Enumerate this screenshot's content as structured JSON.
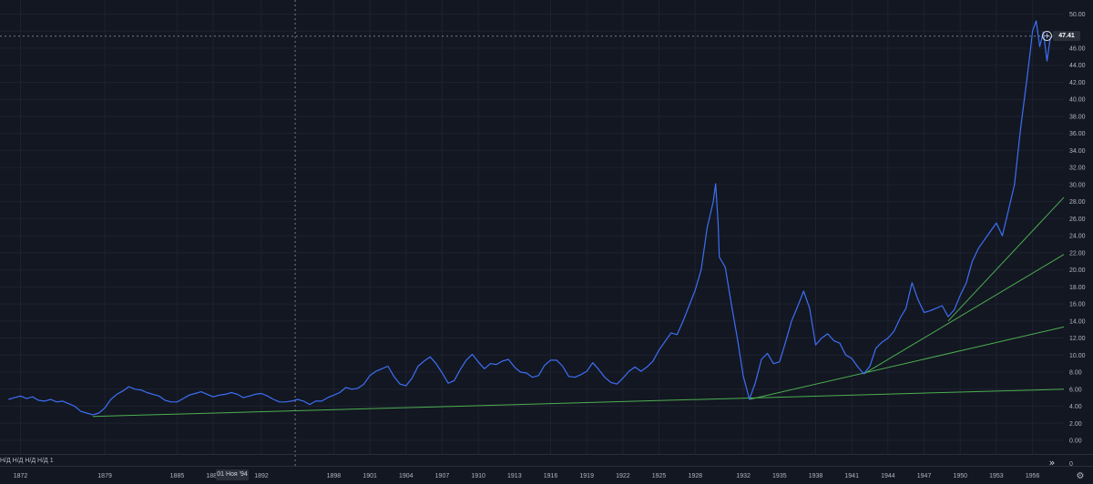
{
  "chart_data": {
    "type": "line",
    "title": "",
    "xlabel": "",
    "ylabel": "",
    "xlim": [
      1870.3,
      1958.6
    ],
    "ylim": [
      0,
      50
    ],
    "x_ticks": [
      "1872",
      "1879",
      "1885",
      "1888",
      "1892",
      "1898",
      "1901",
      "1904",
      "1907",
      "1910",
      "1913",
      "1916",
      "1919",
      "1922",
      "1925",
      "1928",
      "1932",
      "1935",
      "1938",
      "1941",
      "1944",
      "1947",
      "1950",
      "1953",
      "1956"
    ],
    "x_tick_values": [
      1872,
      1879,
      1885,
      1888,
      1892,
      1898,
      1901,
      1904,
      1907,
      1910,
      1913,
      1916,
      1919,
      1922,
      1925,
      1928,
      1932,
      1935,
      1938,
      1941,
      1944,
      1947,
      1950,
      1953,
      1956
    ],
    "y_ticks": [
      "0.00",
      "2.00",
      "4.00",
      "6.00",
      "8.00",
      "10.00",
      "12.00",
      "14.00",
      "16.00",
      "18.00",
      "20.00",
      "22.00",
      "24.00",
      "26.00",
      "28.00",
      "30.00",
      "32.00",
      "34.00",
      "36.00",
      "38.00",
      "40.00",
      "42.00",
      "44.00",
      "46.00",
      "48.00",
      "50.00"
    ],
    "y_tick_values": [
      0,
      2,
      4,
      6,
      8,
      10,
      12,
      14,
      16,
      18,
      20,
      22,
      24,
      26,
      28,
      30,
      32,
      34,
      36,
      38,
      40,
      42,
      44,
      46,
      48,
      50
    ],
    "grid": true,
    "series": [
      {
        "color": "#3d6ff5",
        "points": [
          [
            1871.0,
            4.8
          ],
          [
            1871.5,
            5.0
          ],
          [
            1872.0,
            5.2
          ],
          [
            1872.5,
            4.9
          ],
          [
            1873.0,
            5.1
          ],
          [
            1873.5,
            4.7
          ],
          [
            1874.0,
            4.6
          ],
          [
            1874.5,
            4.8
          ],
          [
            1875.0,
            4.5
          ],
          [
            1875.5,
            4.6
          ],
          [
            1876.0,
            4.3
          ],
          [
            1876.5,
            4.0
          ],
          [
            1877.0,
            3.4
          ],
          [
            1877.5,
            3.2
          ],
          [
            1878.0,
            3.0
          ],
          [
            1878.5,
            3.2
          ],
          [
            1879.0,
            3.8
          ],
          [
            1879.5,
            4.8
          ],
          [
            1880.0,
            5.4
          ],
          [
            1880.5,
            5.8
          ],
          [
            1881.0,
            6.3
          ],
          [
            1881.5,
            6.0
          ],
          [
            1882.0,
            5.9
          ],
          [
            1882.5,
            5.6
          ],
          [
            1883.0,
            5.4
          ],
          [
            1883.5,
            5.2
          ],
          [
            1884.0,
            4.7
          ],
          [
            1884.5,
            4.5
          ],
          [
            1885.0,
            4.5
          ],
          [
            1885.5,
            4.9
          ],
          [
            1886.0,
            5.3
          ],
          [
            1886.5,
            5.5
          ],
          [
            1887.0,
            5.7
          ],
          [
            1887.5,
            5.4
          ],
          [
            1888.0,
            5.1
          ],
          [
            1888.5,
            5.3
          ],
          [
            1889.0,
            5.4
          ],
          [
            1889.5,
            5.6
          ],
          [
            1890.0,
            5.4
          ],
          [
            1890.5,
            5.0
          ],
          [
            1891.0,
            5.2
          ],
          [
            1891.5,
            5.4
          ],
          [
            1892.0,
            5.5
          ],
          [
            1892.5,
            5.2
          ],
          [
            1893.0,
            4.8
          ],
          [
            1893.5,
            4.5
          ],
          [
            1894.0,
            4.5
          ],
          [
            1894.5,
            4.6
          ],
          [
            1895.0,
            4.8
          ],
          [
            1895.5,
            4.6
          ],
          [
            1896.0,
            4.2
          ],
          [
            1896.5,
            4.6
          ],
          [
            1897.0,
            4.6
          ],
          [
            1897.5,
            5.0
          ],
          [
            1898.0,
            5.3
          ],
          [
            1898.5,
            5.6
          ],
          [
            1899.0,
            6.2
          ],
          [
            1899.5,
            6.0
          ],
          [
            1900.0,
            6.1
          ],
          [
            1900.5,
            6.6
          ],
          [
            1901.0,
            7.6
          ],
          [
            1901.5,
            8.1
          ],
          [
            1902.0,
            8.4
          ],
          [
            1902.5,
            8.7
          ],
          [
            1903.0,
            7.5
          ],
          [
            1903.5,
            6.6
          ],
          [
            1904.0,
            6.4
          ],
          [
            1904.5,
            7.3
          ],
          [
            1905.0,
            8.7
          ],
          [
            1905.5,
            9.3
          ],
          [
            1906.0,
            9.8
          ],
          [
            1906.5,
            9.0
          ],
          [
            1907.0,
            7.9
          ],
          [
            1907.5,
            6.7
          ],
          [
            1908.0,
            7.0
          ],
          [
            1908.5,
            8.3
          ],
          [
            1909.0,
            9.4
          ],
          [
            1909.5,
            10.1
          ],
          [
            1910.0,
            9.2
          ],
          [
            1910.5,
            8.4
          ],
          [
            1911.0,
            9.0
          ],
          [
            1911.5,
            8.9
          ],
          [
            1912.0,
            9.3
          ],
          [
            1912.5,
            9.5
          ],
          [
            1913.0,
            8.6
          ],
          [
            1913.5,
            8.0
          ],
          [
            1914.0,
            7.9
          ],
          [
            1914.5,
            7.4
          ],
          [
            1915.0,
            7.6
          ],
          [
            1915.5,
            8.8
          ],
          [
            1916.0,
            9.4
          ],
          [
            1916.5,
            9.4
          ],
          [
            1917.0,
            8.7
          ],
          [
            1917.5,
            7.5
          ],
          [
            1918.0,
            7.4
          ],
          [
            1918.5,
            7.7
          ],
          [
            1919.0,
            8.1
          ],
          [
            1919.5,
            9.1
          ],
          [
            1920.0,
            8.3
          ],
          [
            1920.5,
            7.4
          ],
          [
            1921.0,
            6.8
          ],
          [
            1921.5,
            6.6
          ],
          [
            1922.0,
            7.3
          ],
          [
            1922.5,
            8.1
          ],
          [
            1923.0,
            8.6
          ],
          [
            1923.5,
            8.1
          ],
          [
            1924.0,
            8.6
          ],
          [
            1924.5,
            9.3
          ],
          [
            1925.0,
            10.6
          ],
          [
            1925.5,
            11.6
          ],
          [
            1926.0,
            12.6
          ],
          [
            1926.5,
            12.4
          ],
          [
            1927.0,
            14.0
          ],
          [
            1927.5,
            15.8
          ],
          [
            1928.0,
            17.6
          ],
          [
            1928.5,
            20.0
          ],
          [
            1929.0,
            25.0
          ],
          [
            1929.5,
            28.0
          ],
          [
            1929.7,
            30.1
          ],
          [
            1929.9,
            25.5
          ],
          [
            1930.0,
            21.5
          ],
          [
            1930.5,
            20.3
          ],
          [
            1931.0,
            16.0
          ],
          [
            1931.5,
            12.0
          ],
          [
            1932.0,
            7.5
          ],
          [
            1932.5,
            4.8
          ],
          [
            1933.0,
            6.8
          ],
          [
            1933.5,
            9.5
          ],
          [
            1934.0,
            10.2
          ],
          [
            1934.5,
            9.0
          ],
          [
            1935.0,
            9.2
          ],
          [
            1935.5,
            11.5
          ],
          [
            1936.0,
            14.0
          ],
          [
            1936.5,
            15.7
          ],
          [
            1937.0,
            17.5
          ],
          [
            1937.5,
            15.5
          ],
          [
            1938.0,
            11.2
          ],
          [
            1938.5,
            12.0
          ],
          [
            1939.0,
            12.5
          ],
          [
            1939.5,
            11.7
          ],
          [
            1940.0,
            11.4
          ],
          [
            1940.5,
            10.0
          ],
          [
            1941.0,
            9.6
          ],
          [
            1941.5,
            8.6
          ],
          [
            1942.0,
            7.8
          ],
          [
            1942.5,
            8.7
          ],
          [
            1943.0,
            10.8
          ],
          [
            1943.5,
            11.5
          ],
          [
            1944.0,
            12.0
          ],
          [
            1944.5,
            12.8
          ],
          [
            1945.0,
            14.3
          ],
          [
            1945.5,
            15.5
          ],
          [
            1946.0,
            18.5
          ],
          [
            1946.5,
            16.5
          ],
          [
            1947.0,
            15.0
          ],
          [
            1947.5,
            15.2
          ],
          [
            1948.0,
            15.5
          ],
          [
            1948.5,
            15.8
          ],
          [
            1949.0,
            14.5
          ],
          [
            1949.5,
            15.3
          ],
          [
            1950.0,
            17.0
          ],
          [
            1950.5,
            18.5
          ],
          [
            1951.0,
            21.0
          ],
          [
            1951.5,
            22.5
          ],
          [
            1952.0,
            23.5
          ],
          [
            1952.5,
            24.5
          ],
          [
            1953.0,
            25.5
          ],
          [
            1953.5,
            24.0
          ],
          [
            1954.0,
            27.0
          ],
          [
            1954.5,
            30.0
          ],
          [
            1955.0,
            36.5
          ],
          [
            1955.5,
            42.0
          ],
          [
            1955.8,
            45.5
          ],
          [
            1956.0,
            48.0
          ],
          [
            1956.3,
            49.2
          ],
          [
            1956.6,
            46.2
          ],
          [
            1956.9,
            47.9
          ],
          [
            1957.2,
            44.5
          ],
          [
            1957.5,
            47.4
          ]
        ]
      }
    ],
    "trend_lines": [
      {
        "color": "#4caf50",
        "points": [
          [
            1878.0,
            2.8
          ],
          [
            1958.6,
            6.0
          ]
        ]
      },
      {
        "color": "#4caf50",
        "points": [
          [
            1932.5,
            4.8
          ],
          [
            1958.6,
            13.3
          ]
        ]
      },
      {
        "color": "#4caf50",
        "points": [
          [
            1942.0,
            7.8
          ],
          [
            1958.6,
            21.8
          ]
        ]
      },
      {
        "color": "#4caf50",
        "points": [
          [
            1949.0,
            14.0
          ],
          [
            1958.6,
            28.5
          ]
        ]
      }
    ],
    "crosshair": {
      "x": 1894.8,
      "y": 47.41
    },
    "last_value_label": "47.41",
    "crosshair_date_label": "01 Ноя '94"
  },
  "indicator": {
    "label": "Н/Д  Н/Д  Н/Д  Н/Д  1",
    "value": "0"
  },
  "icons": {
    "plus": "+",
    "double_chevron": "»",
    "gear": "⚙"
  },
  "colors": {
    "background": "#131722",
    "series": "#3d6ff5",
    "trend": "#4caf50",
    "text": "#b2b5be"
  }
}
